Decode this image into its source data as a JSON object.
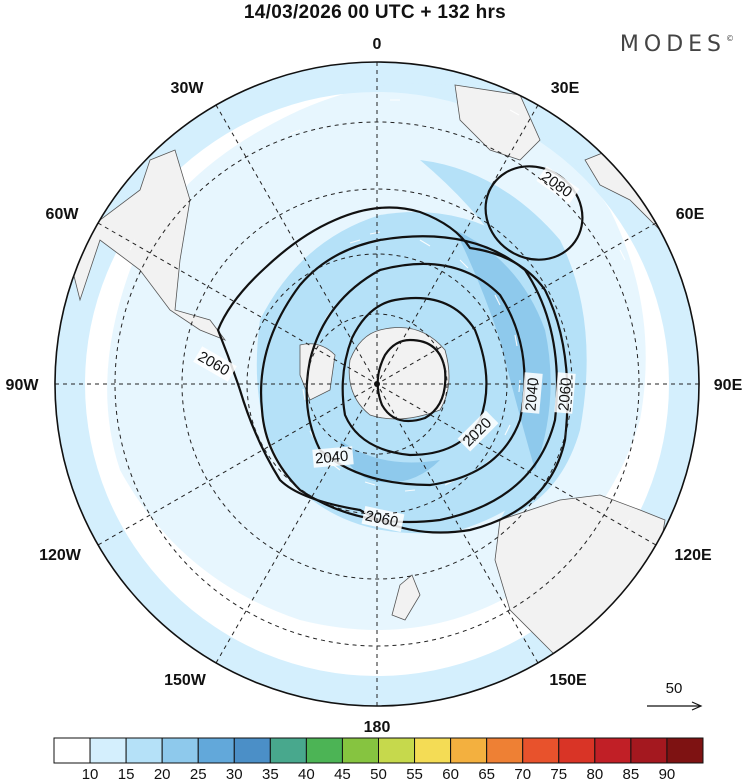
{
  "header": {
    "title": "14/03/2026  00 UTC  + 132 hrs",
    "brand": "MODES",
    "brand_mark": "©"
  },
  "map": {
    "projection": "polar stereographic (south pole)",
    "longitude_labels": [
      "0",
      "30E",
      "60E",
      "90E",
      "120E",
      "150E",
      "180",
      "150W",
      "120W",
      "90W",
      "60W",
      "30W"
    ],
    "contour_labels": [
      "2080",
      "2060",
      "2040",
      "2020",
      "2040",
      "2060",
      "2060"
    ],
    "wind_reference_label": "50"
  },
  "colorbar": {
    "ticks": [
      "10",
      "15",
      "20",
      "25",
      "30",
      "35",
      "40",
      "45",
      "50",
      "55",
      "60",
      "65",
      "70",
      "75",
      "80",
      "85",
      "90"
    ],
    "colors": [
      "#ffffff",
      "#d4effd",
      "#b5e1f8",
      "#8ec9ec",
      "#62a8da",
      "#4b8fc7",
      "#48a88d",
      "#4cb455",
      "#86c440",
      "#c6d94c",
      "#f4dc55",
      "#f3b03f",
      "#ee8034",
      "#e8522c",
      "#d93426",
      "#c11f26",
      "#a4181f",
      "#7e1212"
    ]
  }
}
